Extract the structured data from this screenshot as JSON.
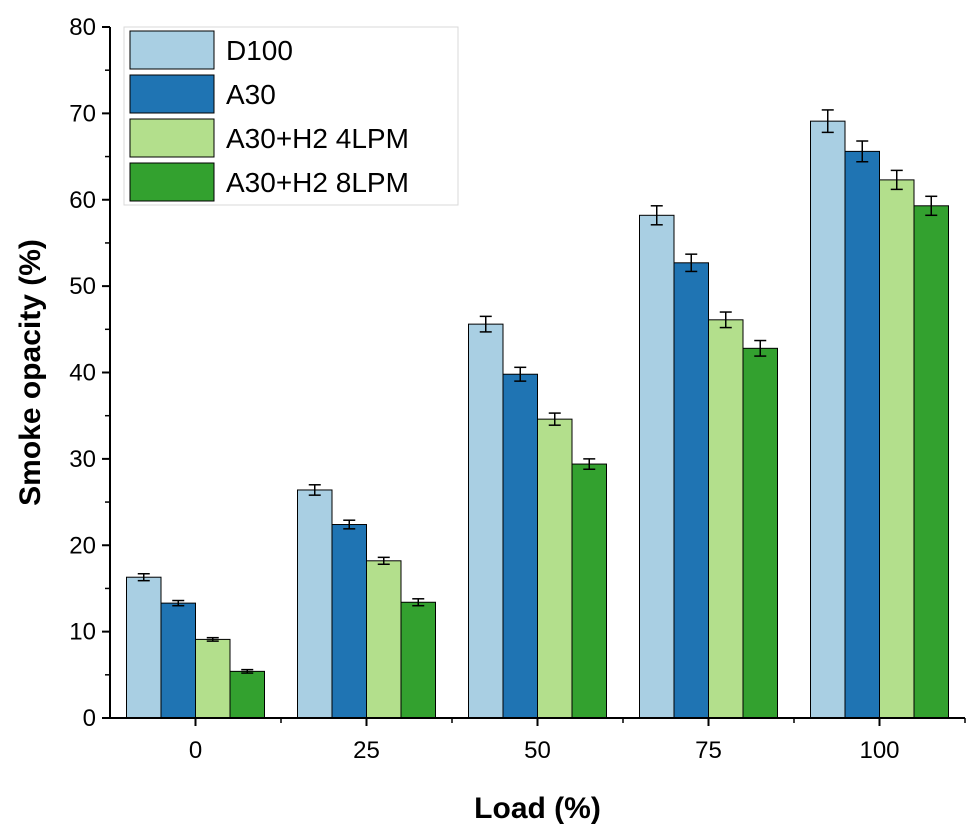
{
  "chart_data": {
    "type": "bar",
    "title": "",
    "xlabel": "Load (%)",
    "ylabel": "Smoke opacity (%)",
    "categories": [
      "0",
      "25",
      "50",
      "75",
      "100"
    ],
    "ylim": [
      0,
      80
    ],
    "yticks": [
      "0",
      "10",
      "20",
      "30",
      "40",
      "50",
      "60",
      "70",
      "80"
    ],
    "legend_position": "top-left",
    "grid": false,
    "series": [
      {
        "name": "D100",
        "color": "#a9cfe3",
        "values": [
          16.3,
          26.4,
          45.6,
          58.2,
          69.1
        ],
        "errors": [
          0.4,
          0.6,
          0.9,
          1.1,
          1.3
        ]
      },
      {
        "name": "A30",
        "color": "#1f74b3",
        "values": [
          13.3,
          22.4,
          39.8,
          52.7,
          65.6
        ],
        "errors": [
          0.3,
          0.5,
          0.8,
          1.0,
          1.2
        ]
      },
      {
        "name": "A30+H2 4LPM",
        "color": "#b3df8c",
        "values": [
          9.1,
          18.2,
          34.6,
          46.1,
          62.3
        ],
        "errors": [
          0.2,
          0.4,
          0.7,
          0.9,
          1.1
        ]
      },
      {
        "name": "A30+H2 8LPM",
        "color": "#33a12f",
        "values": [
          5.4,
          13.4,
          29.4,
          42.8,
          59.3
        ],
        "errors": [
          0.2,
          0.4,
          0.6,
          0.9,
          1.1
        ]
      }
    ]
  }
}
